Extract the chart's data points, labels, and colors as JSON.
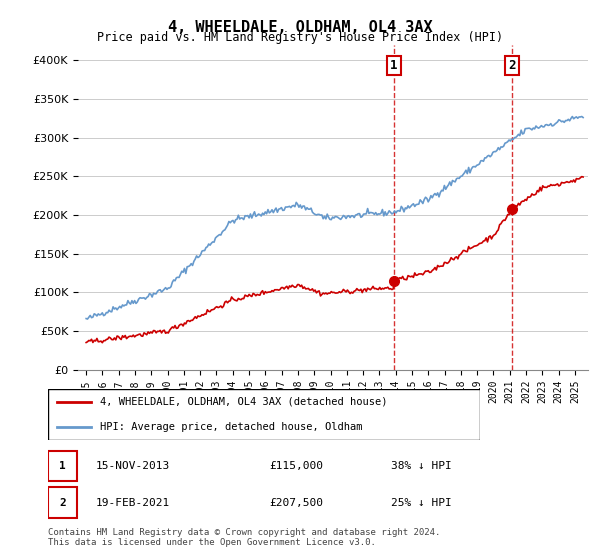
{
  "title": "4, WHEELDALE, OLDHAM, OL4 3AX",
  "subtitle": "Price paid vs. HM Land Registry's House Price Index (HPI)",
  "ylim": [
    0,
    420000
  ],
  "yticks": [
    0,
    50000,
    100000,
    150000,
    200000,
    250000,
    300000,
    350000,
    400000
  ],
  "hpi_color": "#6699cc",
  "price_color": "#cc0000",
  "transaction1_date_num": 2013.88,
  "transaction1_price": 115000,
  "transaction2_date_num": 2021.13,
  "transaction2_price": 207500,
  "vline_color": "#cc0000",
  "footer_text": "Contains HM Land Registry data © Crown copyright and database right 2024.\nThis data is licensed under the Open Government Licence v3.0.",
  "table_row1": [
    "1",
    "15-NOV-2013",
    "£115,000",
    "38% ↓ HPI"
  ],
  "table_row2": [
    "2",
    "19-FEB-2021",
    "£207,500",
    "25% ↓ HPI"
  ]
}
